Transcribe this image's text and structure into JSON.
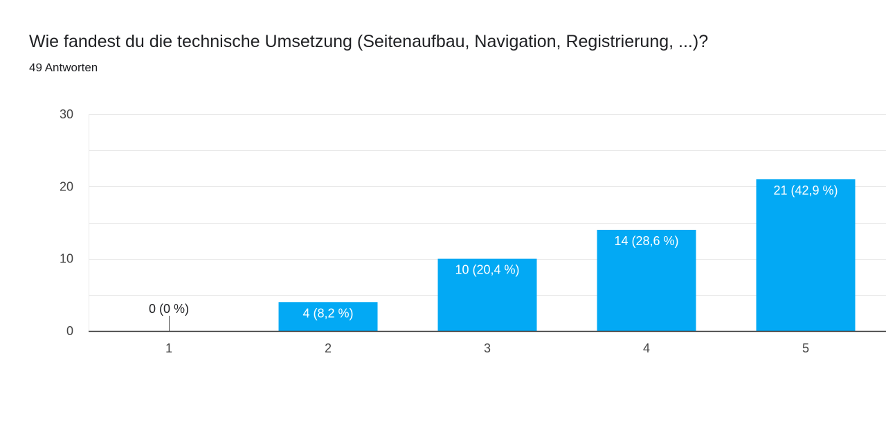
{
  "question": {
    "title": "Wie fandest du die technische Umsetzung (Seitenaufbau, Navigation, Registrierung, ...)?",
    "response_count": "49 Antworten"
  },
  "colors": {
    "bar": "#03a9f4",
    "bar_label_inside": "#ffffff",
    "bar_label_outside": "#202124",
    "gridline": "#e8e8e8",
    "axis": "#333333"
  },
  "chart_data": {
    "type": "bar",
    "title": "Wie fandest du die technische Umsetzung (Seitenaufbau, Navigation, Registrierung, ...)?",
    "categories": [
      "1",
      "2",
      "3",
      "4",
      "5"
    ],
    "values": [
      0,
      4,
      10,
      14,
      21
    ],
    "data_labels": [
      "0 (0 %)",
      "4 (8,2 %)",
      "10 (20,4 %)",
      "14 (28,6 %)",
      "21 (42,9 %)"
    ],
    "ylim": [
      0,
      30
    ],
    "y_ticks": [
      0,
      10,
      20,
      30
    ],
    "y_tick_labels": [
      "0",
      "10",
      "20",
      "30"
    ],
    "minor_grid_step": 5,
    "grid": true,
    "legend": "none",
    "xlabel": "",
    "ylabel": ""
  }
}
